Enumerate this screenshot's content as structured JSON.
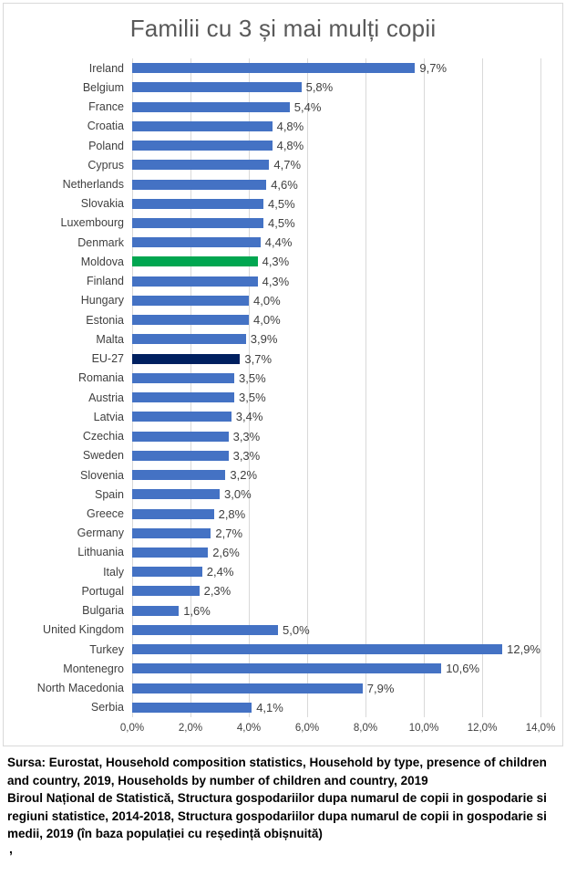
{
  "chart_data": {
    "type": "bar",
    "orientation": "horizontal",
    "title": "Familii cu 3 și mai mulți copii",
    "xlabel": "",
    "ylabel": "",
    "xlim": [
      0,
      14
    ],
    "grid": "vertical-major-2pct",
    "legend": "none",
    "axis_ticks": [
      {
        "value": 0,
        "label": "0,0%"
      },
      {
        "value": 2,
        "label": "2,0%"
      },
      {
        "value": 4,
        "label": "4,0%"
      },
      {
        "value": 6,
        "label": "6,0%"
      },
      {
        "value": 8,
        "label": "8,0%"
      },
      {
        "value": 10,
        "label": "10,0%"
      },
      {
        "value": 12,
        "label": "12,0%"
      },
      {
        "value": 14,
        "label": "14,0%"
      }
    ],
    "colors": {
      "default_bar": "#4472c4",
      "highlight_moldova": "#00a650",
      "highlight_eu27": "#002060",
      "gridline": "#d9d9d9",
      "title_text": "#595959",
      "label_text": "#3f3f3f"
    },
    "bars": [
      {
        "category": "Ireland",
        "value": 9.7,
        "label": "9,7%",
        "color": "#4472c4"
      },
      {
        "category": "Belgium",
        "value": 5.8,
        "label": "5,8%",
        "color": "#4472c4"
      },
      {
        "category": "France",
        "value": 5.4,
        "label": "5,4%",
        "color": "#4472c4"
      },
      {
        "category": "Croatia",
        "value": 4.8,
        "label": "4,8%",
        "color": "#4472c4"
      },
      {
        "category": "Poland",
        "value": 4.8,
        "label": "4,8%",
        "color": "#4472c4"
      },
      {
        "category": "Cyprus",
        "value": 4.7,
        "label": "4,7%",
        "color": "#4472c4"
      },
      {
        "category": "Netherlands",
        "value": 4.6,
        "label": "4,6%",
        "color": "#4472c4"
      },
      {
        "category": "Slovakia",
        "value": 4.5,
        "label": "4,5%",
        "color": "#4472c4"
      },
      {
        "category": "Luxembourg",
        "value": 4.5,
        "label": "4,5%",
        "color": "#4472c4"
      },
      {
        "category": "Denmark",
        "value": 4.4,
        "label": "4,4%",
        "color": "#4472c4"
      },
      {
        "category": "Moldova",
        "value": 4.3,
        "label": "4,3%",
        "color": "#00a650"
      },
      {
        "category": "Finland",
        "value": 4.3,
        "label": "4,3%",
        "color": "#4472c4"
      },
      {
        "category": "Hungary",
        "value": 4.0,
        "label": "4,0%",
        "color": "#4472c4"
      },
      {
        "category": "Estonia",
        "value": 4.0,
        "label": "4,0%",
        "color": "#4472c4"
      },
      {
        "category": "Malta",
        "value": 3.9,
        "label": "3,9%",
        "color": "#4472c4"
      },
      {
        "category": "EU-27",
        "value": 3.7,
        "label": "3,7%",
        "color": "#002060"
      },
      {
        "category": "Romania",
        "value": 3.5,
        "label": "3,5%",
        "color": "#4472c4"
      },
      {
        "category": "Austria",
        "value": 3.5,
        "label": "3,5%",
        "color": "#4472c4"
      },
      {
        "category": "Latvia",
        "value": 3.4,
        "label": "3,4%",
        "color": "#4472c4"
      },
      {
        "category": "Czechia",
        "value": 3.3,
        "label": "3,3%",
        "color": "#4472c4"
      },
      {
        "category": "Sweden",
        "value": 3.3,
        "label": "3,3%",
        "color": "#4472c4"
      },
      {
        "category": "Slovenia",
        "value": 3.2,
        "label": "3,2%",
        "color": "#4472c4"
      },
      {
        "category": "Spain",
        "value": 3.0,
        "label": "3,0%",
        "color": "#4472c4"
      },
      {
        "category": "Greece",
        "value": 2.8,
        "label": "2,8%",
        "color": "#4472c4"
      },
      {
        "category": "Germany",
        "value": 2.7,
        "label": "2,7%",
        "color": "#4472c4"
      },
      {
        "category": "Lithuania",
        "value": 2.6,
        "label": "2,6%",
        "color": "#4472c4"
      },
      {
        "category": "Italy",
        "value": 2.4,
        "label": "2,4%",
        "color": "#4472c4"
      },
      {
        "category": "Portugal",
        "value": 2.3,
        "label": "2,3%",
        "color": "#4472c4"
      },
      {
        "category": "Bulgaria",
        "value": 1.6,
        "label": "1,6%",
        "color": "#4472c4"
      },
      {
        "category": "United Kingdom",
        "value": 5.0,
        "label": "5,0%",
        "color": "#4472c4"
      },
      {
        "category": "Turkey",
        "value": 12.9,
        "label": "12,9%",
        "color": "#4472c4"
      },
      {
        "category": "Montenegro",
        "value": 10.6,
        "label": "10,6%",
        "color": "#4472c4"
      },
      {
        "category": "North Macedonia",
        "value": 7.9,
        "label": "7,9%",
        "color": "#4472c4"
      },
      {
        "category": "Serbia",
        "value": 4.1,
        "label": "4,1%",
        "color": "#4472c4"
      }
    ]
  },
  "source": {
    "line1": "Sursa: Eurostat, Household composition statistics, Household by type, presence of children and country, 2019,  Households by number of children and country, 2019",
    "line2": "Biroul Național de Statistică, Structura gospodariilor dupa numarul de copii in gospodarie si regiuni statistice, 2014-2018,  Structura gospodariilor dupa numarul de copii in gospodarie si medii, 2019 (în baza populației cu reședință obișnuită)",
    "stray_text": ","
  }
}
